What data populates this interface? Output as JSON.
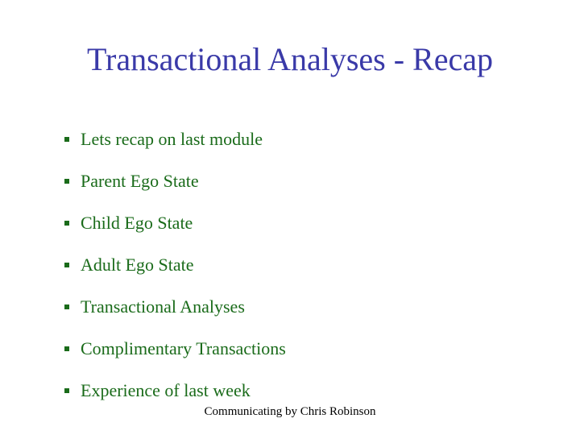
{
  "slide": {
    "title": "Transactional Analyses - Recap",
    "title_color": "#3a3aa8",
    "title_fontsize": 40,
    "bullets": [
      "Lets recap on last module",
      "Parent Ego State",
      "Child Ego State",
      "Adult Ego State",
      "Transactional Analyses",
      "Complimentary Transactions",
      "Experience of last week"
    ],
    "bullet_color": "#1a6b1a",
    "bullet_fontsize": 22,
    "footer": "Communicating by Chris Robinson",
    "footer_color": "#000000",
    "footer_fontsize": 15,
    "background_color": "#ffffff"
  }
}
